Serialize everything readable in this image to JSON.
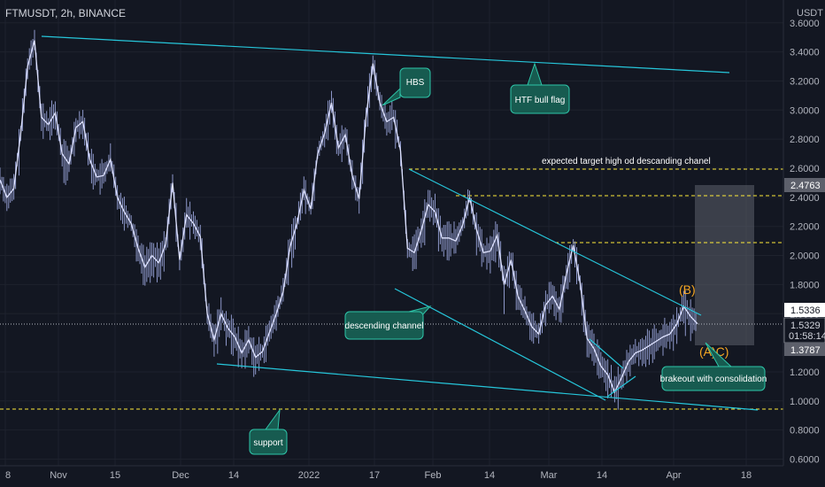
{
  "header": {
    "symbol_line": "FTMUSDT, 2h, BINANCE",
    "currency": "USDT"
  },
  "colors": {
    "background": "#131722",
    "candle": "#dfe3ff",
    "trendline": "#26c6da",
    "dashed": "#ffeb3b",
    "callout_fill": "#175b50",
    "callout_border": "#2ec4a8",
    "wave_label": "#f5a623",
    "target_box": "#5d606b"
  },
  "chart_data": {
    "type": "line",
    "title": "FTMUSDT, 2h, BINANCE",
    "xlabel": "",
    "ylabel": "",
    "x_tick_labels": [
      "8",
      "Nov",
      "15",
      "Dec",
      "14",
      "2022",
      "17",
      "Feb",
      "14",
      "Mar",
      "14",
      "Apr",
      "18"
    ],
    "y_tick_labels": [
      "3.6000",
      "3.4000",
      "3.2000",
      "3.0000",
      "2.8000",
      "2.6000",
      "2.4000",
      "2.2000",
      "2.0000",
      "1.8000",
      "1.6000",
      "1.2000",
      "1.0000",
      "0.8000",
      "0.6000"
    ],
    "ylim": [
      0.55,
      3.7
    ],
    "grid": true,
    "series": [
      {
        "values": [
          2.52,
          2.4,
          2.46,
          2.84,
          3.3,
          3.48,
          2.95,
          2.9,
          2.98,
          2.7,
          2.63,
          2.88,
          2.92,
          2.66,
          2.54,
          2.55,
          2.66,
          2.4,
          2.3,
          2.22,
          2.05,
          1.92,
          2.0,
          1.95,
          2.08,
          2.5,
          1.97,
          2.28,
          2.22,
          2.13,
          1.6,
          1.42,
          1.6,
          1.5,
          1.44,
          1.33,
          1.42,
          1.3,
          1.34,
          1.47,
          1.6,
          1.75,
          2.06,
          2.22,
          2.45,
          2.32,
          2.7,
          2.84,
          3.05,
          2.74,
          2.83,
          2.55,
          2.39,
          2.95,
          3.32,
          3.05,
          2.92,
          2.95,
          2.72,
          2.05,
          2.02,
          2.17,
          2.35,
          2.3,
          2.12,
          2.12,
          2.1,
          2.21,
          2.4,
          2.18,
          2.02,
          2.03,
          2.14,
          1.8,
          1.97,
          1.72,
          1.62,
          1.51,
          1.46,
          1.66,
          1.72,
          1.63,
          1.87,
          2.07,
          1.81,
          1.43,
          1.36,
          1.24,
          1.18,
          1.06,
          1.16,
          1.27,
          1.33,
          1.35,
          1.38,
          1.41,
          1.44,
          1.46,
          1.53,
          1.65,
          1.58,
          1.53
        ]
      }
    ],
    "price_labels": [
      "2.4763",
      "1.5336",
      "1.5329",
      "01:58:14",
      "1.3787"
    ],
    "annotations": {
      "hbs": "HBS",
      "htf_bull_flag": "HTF bull flag",
      "expected_target": "expected target high od descanding chanel",
      "descending_channel": "descending channel",
      "breakout": "brakeout with consolidation",
      "support": "support",
      "wave_b": "(B)",
      "wave_ac": "(A)C)"
    }
  }
}
